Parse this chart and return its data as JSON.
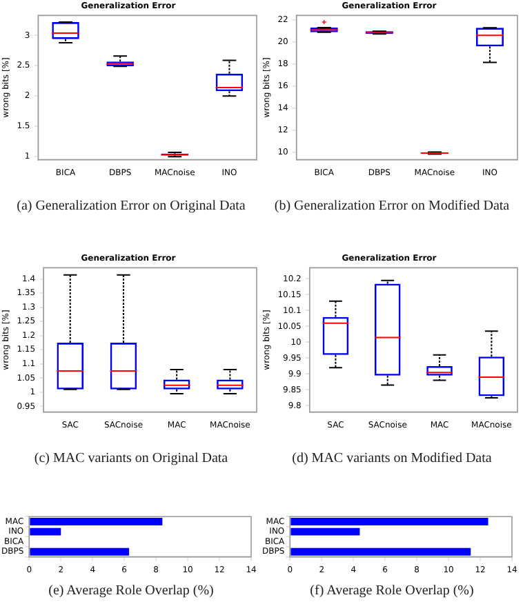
{
  "chart_data": [
    {
      "type": "box",
      "title": "Generalization Error",
      "ylabel": "wrong bits [%]",
      "categories": [
        "BICA",
        "DBPS",
        "MACnoise",
        "INO"
      ],
      "color": "#0000ff",
      "boxes": [
        {
          "low": 2.88,
          "q1": 2.94,
          "median": 3.04,
          "q3": 3.22,
          "high": 3.22
        },
        {
          "low": 2.49,
          "q1": 2.49,
          "median": 2.53,
          "q3": 2.57,
          "high": 2.66
        },
        {
          "low": 1.0,
          "q1": 1.02,
          "median": 1.03,
          "q3": 1.05,
          "high": 1.07
        },
        {
          "low": 2.0,
          "q1": 2.08,
          "median": 2.14,
          "q3": 2.37,
          "high": 2.59
        }
      ],
      "ylim": [
        0.95,
        3.33
      ],
      "yticks": [
        1,
        1.5,
        2,
        2.5,
        3
      ],
      "grid": false,
      "annotations": [
        "(a) Generalization Error on Original Data"
      ]
    },
    {
      "type": "box",
      "title": "Generalization Error",
      "ylabel": "wrong bits [%]",
      "categories": [
        "BICA",
        "DBPS",
        "MACnoise",
        "INO"
      ],
      "color": "#0000ff",
      "boxes": [
        {
          "low": 20.88,
          "q1": 20.88,
          "median": 21.1,
          "q3": 21.3,
          "high": 21.3,
          "outliers": [
            21.8
          ]
        },
        {
          "low": 20.72,
          "q1": 20.72,
          "median": 20.85,
          "q3": 20.98,
          "high": 20.98
        },
        {
          "low": 9.85,
          "q1": 9.9,
          "median": 9.95,
          "q3": 10.0,
          "high": 10.05
        },
        {
          "low": 18.15,
          "q1": 19.6,
          "median": 20.6,
          "q3": 21.28,
          "high": 21.28
        }
      ],
      "ylim": [
        9.35,
        22.4
      ],
      "yticks": [
        10,
        12,
        14,
        16,
        18,
        20,
        22
      ],
      "grid": false,
      "annotations": [
        "(b) Generalization Error on Modified Data"
      ]
    },
    {
      "type": "box",
      "title": "Generalization Error",
      "ylabel": "wrong bits [%]",
      "categories": [
        "SAC",
        "SACnoise",
        "MAC",
        "MACnoise"
      ],
      "color": "#0000ff",
      "boxes": [
        {
          "low": 1.01,
          "q1": 1.01,
          "median": 1.075,
          "q3": 1.175,
          "high": 1.415
        },
        {
          "low": 1.01,
          "q1": 1.01,
          "median": 1.075,
          "q3": 1.175,
          "high": 1.415
        },
        {
          "low": 0.995,
          "q1": 1.01,
          "median": 1.025,
          "q3": 1.045,
          "high": 1.08
        },
        {
          "low": 0.995,
          "q1": 1.01,
          "median": 1.025,
          "q3": 1.045,
          "high": 1.08
        }
      ],
      "ylim": [
        0.93,
        1.44
      ],
      "yticks": [
        0.95,
        1,
        1.05,
        1.1,
        1.15,
        1.2,
        1.25,
        1.3,
        1.35,
        1.4
      ],
      "grid": false,
      "annotations": [
        "(c) MAC variants on Original Data"
      ]
    },
    {
      "type": "box",
      "title": "Generalization Error",
      "ylabel": "wrong bits [%]",
      "categories": [
        "SAC",
        "SACnoise",
        "MAC",
        "MACnoise"
      ],
      "color": "#0000ff",
      "boxes": [
        {
          "low": 9.92,
          "q1": 9.96,
          "median": 10.06,
          "q3": 10.08,
          "high": 10.13
        },
        {
          "low": 9.865,
          "q1": 9.895,
          "median": 10.015,
          "q3": 10.185,
          "high": 10.195
        },
        {
          "low": 9.88,
          "q1": 9.895,
          "median": 9.905,
          "q3": 9.925,
          "high": 9.96
        },
        {
          "low": 9.825,
          "q1": 9.83,
          "median": 9.89,
          "q3": 9.955,
          "high": 10.035
        }
      ],
      "ylim": [
        9.78,
        10.235
      ],
      "yticks": [
        9.8,
        9.85,
        9.9,
        9.95,
        10,
        10.05,
        10.1,
        10.15,
        10.2
      ],
      "grid": false,
      "annotations": [
        "(d) MAC variants on Modified Data"
      ]
    },
    {
      "type": "bar",
      "orientation": "horizontal",
      "categories": [
        "MAC",
        "INO",
        "BICA",
        "DBPS"
      ],
      "values": [
        8.4,
        2,
        0,
        6.3
      ],
      "color": "#0000ff",
      "xlim": [
        0,
        14
      ],
      "xticks": [
        0,
        2,
        4,
        6,
        8,
        10,
        12,
        14
      ],
      "grid": false,
      "annotations": [
        "(e) Average Role Overlap (%)"
      ]
    },
    {
      "type": "bar",
      "orientation": "horizontal",
      "categories": [
        "MAC",
        "INO",
        "BICA",
        "DBPS"
      ],
      "values": [
        12.5,
        4.4,
        0,
        11.4
      ],
      "color": "#0000ff",
      "xlim": [
        0,
        14
      ],
      "xticks": [
        0,
        2,
        4,
        6,
        8,
        10,
        12,
        14
      ],
      "grid": false,
      "annotations": [
        "(f) Average Role Overlap (%)"
      ]
    }
  ]
}
